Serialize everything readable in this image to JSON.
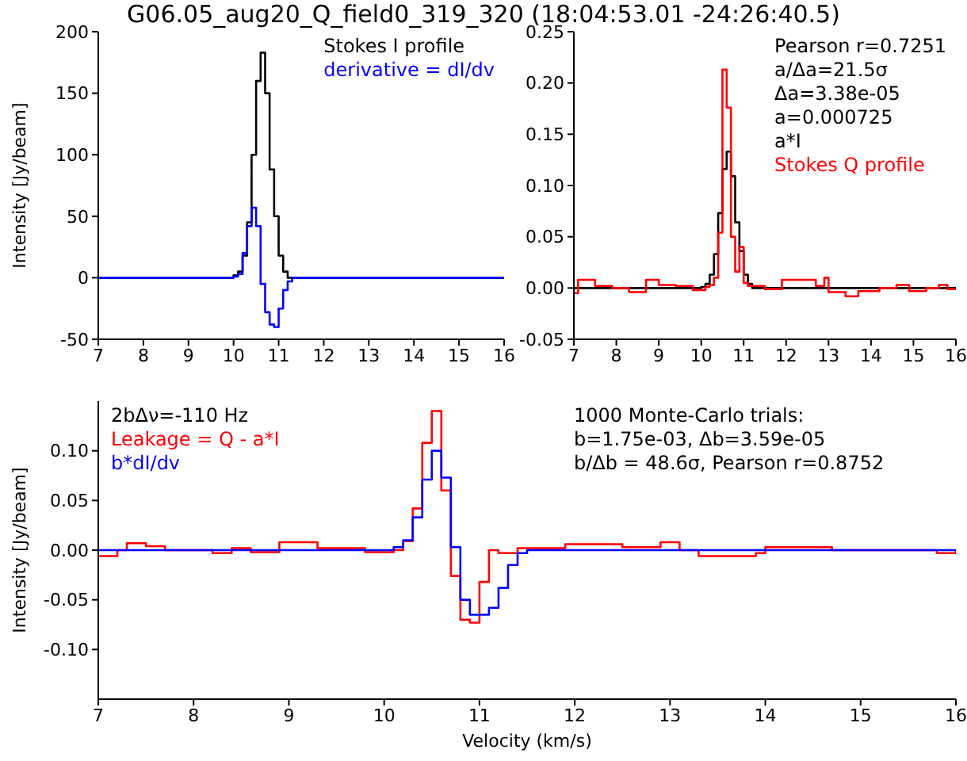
{
  "chart_data": [
    {
      "type": "step",
      "title": "G06.05_aug20_Q_field0_319_320 (18:04:53.01 -24:26:40.5)",
      "ylabel": "Intensity [Jy/beam]",
      "xlim": [
        7,
        16
      ],
      "xticks": [
        7,
        8,
        9,
        10,
        11,
        12,
        13,
        14,
        15,
        16
      ],
      "ylim": [
        -50,
        200
      ],
      "yticks": [
        -50,
        0,
        50,
        100,
        150,
        200
      ],
      "legend": "top right",
      "grid": false,
      "series": [
        {
          "name": "Stokes I profile",
          "color": "#000000",
          "x": [
            7,
            10.0,
            10.1,
            10.2,
            10.3,
            10.4,
            10.5,
            10.6,
            10.7,
            10.8,
            10.9,
            11.0,
            11.1,
            11.2,
            16
          ],
          "values": [
            0,
            2,
            5,
            18,
            45,
            100,
            160,
            183,
            150,
            88,
            50,
            18,
            5,
            0,
            0
          ]
        },
        {
          "name": "derivative = dI/dv",
          "color": "#0000ff",
          "x": [
            7,
            10.0,
            10.1,
            10.2,
            10.3,
            10.4,
            10.5,
            10.6,
            10.7,
            10.8,
            10.9,
            11.0,
            11.1,
            11.2,
            11.3,
            16
          ],
          "values": [
            0,
            1,
            3,
            20,
            42,
            57,
            42,
            -5,
            -28,
            -38,
            -40,
            -25,
            -10,
            -3,
            0,
            0
          ]
        }
      ]
    },
    {
      "type": "step",
      "annotations": [
        "Pearson r=0.7251",
        "a/Δa=21.5σ",
        "Δa=3.38e-05",
        "a=0.000725"
      ],
      "xlim": [
        7,
        16
      ],
      "xticks": [
        7,
        8,
        9,
        10,
        11,
        12,
        13,
        14,
        15,
        16
      ],
      "ylim": [
        -0.05,
        0.25
      ],
      "yticks": [
        {
          "value": -0.05,
          "label": "-0.05"
        },
        {
          "value": 0,
          "label": "0.00"
        },
        {
          "value": 0.05,
          "label": "0.05"
        },
        {
          "value": 0.1,
          "label": "0.10"
        },
        {
          "value": 0.15,
          "label": "0.15"
        },
        {
          "value": 0.2,
          "label": "0.20"
        },
        {
          "value": 0.25,
          "label": "0.25"
        }
      ],
      "legend": "top right",
      "grid": false,
      "series": [
        {
          "name": "a*I",
          "color": "#000000",
          "x": [
            7,
            10.0,
            10.1,
            10.2,
            10.3,
            10.4,
            10.5,
            10.6,
            10.7,
            10.8,
            10.9,
            11.0,
            11.1,
            11.2,
            16
          ],
          "values": [
            0,
            0.001,
            0.004,
            0.013,
            0.033,
            0.073,
            0.116,
            0.133,
            0.109,
            0.064,
            0.036,
            0.013,
            0.004,
            0,
            0
          ]
        },
        {
          "name": "Stokes Q profile",
          "color": "#ff0000",
          "x": [
            7.0,
            7.1,
            7.5,
            7.9,
            8.3,
            8.7,
            9.0,
            9.4,
            9.8,
            10.1,
            10.2,
            10.3,
            10.4,
            10.5,
            10.6,
            10.7,
            10.8,
            10.9,
            11.0,
            11.1,
            11.5,
            11.9,
            12.7,
            12.9,
            13.0,
            13.4,
            13.7,
            14.2,
            14.6,
            14.9,
            15.3,
            15.6,
            15.8,
            16
          ],
          "values": [
            -0.005,
            0.008,
            0.002,
            0,
            -0.004,
            0.008,
            0.003,
            0.002,
            -0.002,
            0.001,
            0.003,
            0.01,
            0.054,
            0.213,
            0.176,
            0.05,
            0.016,
            0.04,
            0.005,
            0.002,
            -0.001,
            0.008,
            0.002,
            0.01,
            -0.004,
            -0.008,
            -0.003,
            0,
            0.003,
            -0.003,
            0,
            0.003,
            -0.001,
            0
          ]
        }
      ]
    },
    {
      "type": "step",
      "xlabel": "Velocity (km/s)",
      "ylabel": "Intensity [Jy/beam]",
      "legend_title": "2bΔν=-110 Hz",
      "annotations": [
        "1000 Monte-Carlo trials:",
        "b=1.75e-03,  Δb=3.59e-05",
        "b/Δb = 48.6σ, Pearson r=0.8752"
      ],
      "xlim": [
        7,
        16
      ],
      "xticks": [
        7,
        8,
        9,
        10,
        11,
        12,
        13,
        14,
        15,
        16
      ],
      "ylim": [
        -0.15,
        0.15
      ],
      "yticks": [
        {
          "value": -0.1,
          "label": "-0.10"
        },
        {
          "value": -0.05,
          "label": "-0.05"
        },
        {
          "value": 0,
          "label": "0.00"
        },
        {
          "value": 0.05,
          "label": "0.05"
        },
        {
          "value": 0.1,
          "label": "0.10"
        }
      ],
      "legend": "top left",
      "grid": false,
      "series": [
        {
          "name": "Leakage = Q - a*I",
          "color": "#ff0000",
          "x": [
            7.0,
            7.2,
            7.3,
            7.5,
            7.7,
            8.2,
            8.4,
            8.6,
            8.9,
            9.3,
            9.8,
            10.1,
            10.2,
            10.3,
            10.4,
            10.5,
            10.6,
            10.7,
            10.8,
            10.9,
            11.0,
            11.1,
            11.2,
            11.4,
            11.9,
            12.5,
            12.9,
            13.1,
            13.3,
            13.9,
            14.0,
            14.7,
            15.8,
            16
          ],
          "values": [
            -0.006,
            0,
            0.007,
            0.004,
            0,
            -0.003,
            0.002,
            -0.002,
            0.008,
            0.002,
            -0.002,
            0,
            0.009,
            0.042,
            0.108,
            0.14,
            0.06,
            -0.026,
            -0.07,
            -0.073,
            -0.032,
            0,
            -0.003,
            0.002,
            0.006,
            0.003,
            0.008,
            0,
            -0.006,
            -0.003,
            0.003,
            0,
            -0.003,
            0
          ]
        },
        {
          "name": "b*dI/dv",
          "color": "#0000ff",
          "x": [
            7,
            10.1,
            10.2,
            10.3,
            10.4,
            10.5,
            10.6,
            10.7,
            10.8,
            10.9,
            11.0,
            11.1,
            11.2,
            11.3,
            11.4,
            11.5,
            16
          ],
          "values": [
            0,
            0.003,
            0.01,
            0.033,
            0.071,
            0.1,
            0.073,
            0.003,
            -0.05,
            -0.065,
            -0.065,
            -0.058,
            -0.038,
            -0.015,
            -0.003,
            0,
            0
          ]
        }
      ]
    }
  ]
}
